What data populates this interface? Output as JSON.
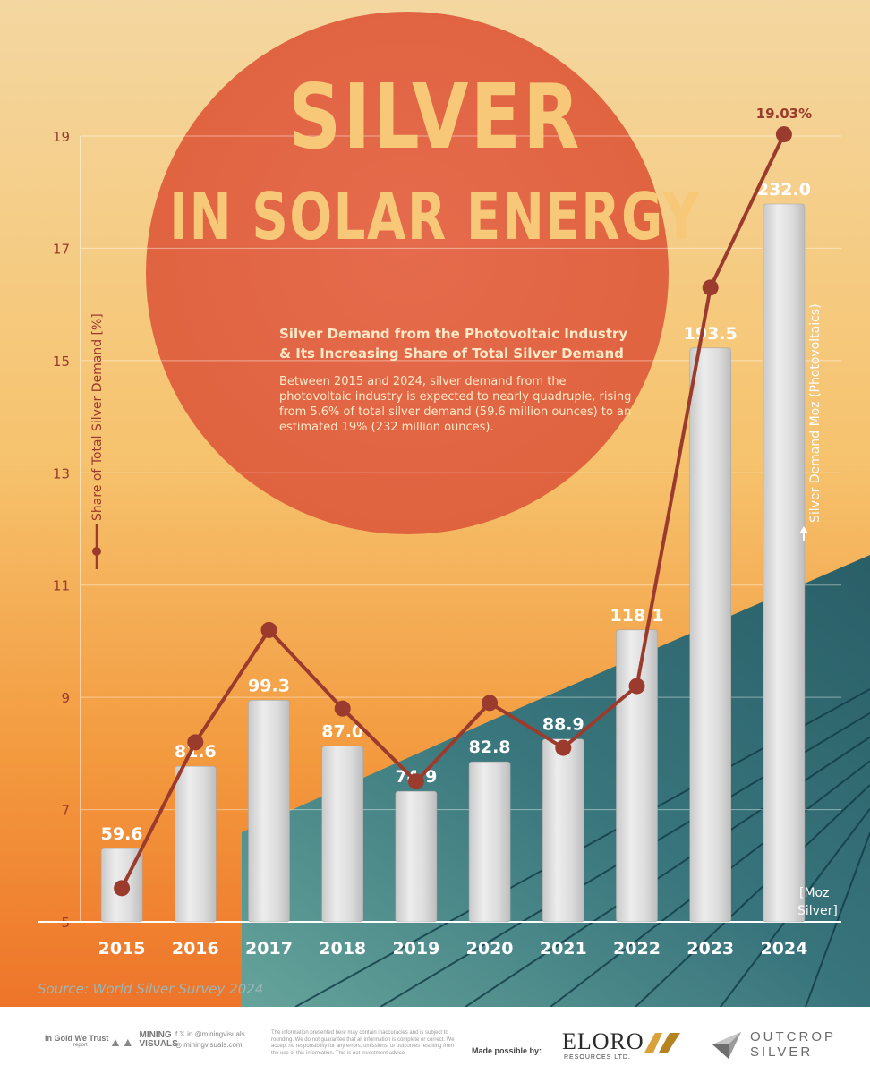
{
  "header": {
    "title": "SILVER",
    "subtitle_title": "IN SOLAR ENERGY",
    "chart_heading_line1": "Silver Demand from the Photovoltaic Industry",
    "chart_heading_line2": "& Its Increasing Share of Total Silver Demand",
    "description": "Between 2015 and 2024, silver demand from the photovoltaic industry is expected to nearly quadruple, rising from 5.6% of total silver demand (59.6 million ounces) to an estimated 19% (232 million ounces)."
  },
  "source": "Source: World Silver Survey 2024",
  "colors": {
    "line": "#9a3b2e",
    "bar": "#d9d9d9",
    "sun": "#e0684a",
    "accent_text": "#9a3b2e",
    "bg_top": "#f3d39a",
    "bg_bottom": "#f07a2a",
    "panel": "#2f6f7a"
  },
  "chart_data": {
    "type": "bar",
    "categories": [
      "2015",
      "2016",
      "2017",
      "2018",
      "2019",
      "2020",
      "2021",
      "2022",
      "2023",
      "2024"
    ],
    "series": [
      {
        "name": "Silver Demand Moz (Photovoltaics)",
        "type": "bar",
        "values": [
          59.6,
          81.6,
          99.3,
          87.0,
          74.9,
          82.8,
          88.9,
          118.1,
          193.5,
          232.0
        ],
        "labels": [
          "59.6",
          "81.6",
          "99.3",
          "87.0",
          "74.9",
          "82.8",
          "88.9",
          "118.1",
          "193.5",
          "232.0"
        ]
      },
      {
        "name": "Share of Total Silver Demand [%]",
        "type": "line",
        "values": [
          5.6,
          8.2,
          10.2,
          8.8,
          7.5,
          8.9,
          8.1,
          9.2,
          16.3,
          19.03
        ]
      }
    ],
    "line_end_label": "19.03%",
    "left_axis": {
      "label": "Share of Total Silver Demand [%]",
      "ticks": [
        "5",
        "7",
        "9",
        "11",
        "13",
        "15",
        "17",
        "19"
      ],
      "range": [
        5,
        19
      ]
    },
    "right_axis": {
      "label": "Silver Demand Moz (Photovoltaics)",
      "unit_line1": "[Moz",
      "unit_line2": "Silver]"
    }
  },
  "footer": {
    "logo_in_gold": "In Gold We Trust",
    "logo_in_gold_sub": "report",
    "logo_mining_visuals": "MINING VISUALS",
    "social_handle": "@miningvisuals",
    "website": "miningvisuals.com",
    "disclaimer": "The information presented here may contain inaccuracies and is subject to rounding. We do not guarantee that all information is complete or correct. We accept no responsibility for any errors, omissions, or outcomes resulting from the use of this information. This is not investment advice.",
    "made_possible": "Made possible by:",
    "eloro": "ELORO",
    "eloro_sub": "RESOURCES LTD.",
    "outcrop_line1": "OUTCROP",
    "outcrop_line2": "SILVER"
  }
}
